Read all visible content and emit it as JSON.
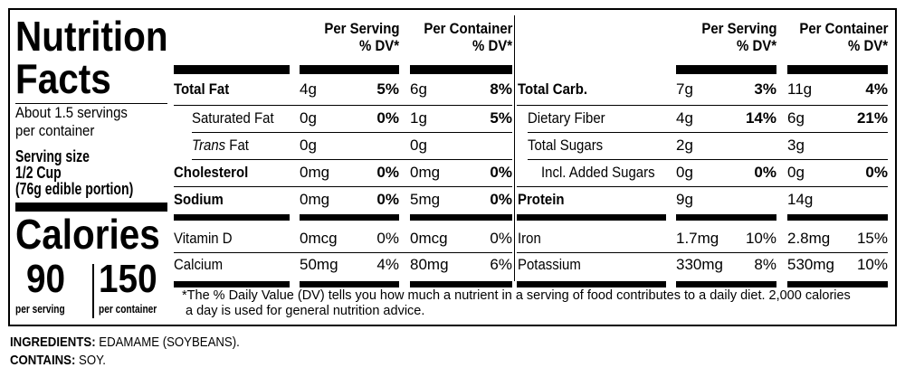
{
  "title_line1": "Nutrition",
  "title_line2": "Facts",
  "servings_line1": "About 1.5 servings",
  "servings_line2": "per container",
  "serving_size_label": "Serving size",
  "serving_size_value": "1/2 Cup",
  "serving_size_note": "(76g edible portion)",
  "calories_label": "Calories",
  "calories_per_serving": "90",
  "calories_per_serving_label": "per serving",
  "calories_per_container": "150",
  "calories_per_container_label": "per container",
  "headers": {
    "per_serving": "Per Serving",
    "per_container": "Per Container",
    "dv": "% DV*"
  },
  "left_rows": [
    {
      "name": "Total Fat",
      "bold": true,
      "serving_amount": "4g",
      "serving_dv": "5%",
      "container_amount": "6g",
      "container_dv": "8%"
    },
    {
      "name": "Saturated Fat",
      "bold": false,
      "serving_amount": "0g",
      "serving_dv": "0%",
      "container_amount": "1g",
      "container_dv": "5%"
    },
    {
      "name_italic": "Trans",
      "name": "Fat",
      "bold": false,
      "serving_amount": "0g",
      "serving_dv": "",
      "container_amount": "0g",
      "container_dv": ""
    },
    {
      "name": "Cholesterol",
      "bold": true,
      "serving_amount": "0mg",
      "serving_dv": "0%",
      "container_amount": "0mg",
      "container_dv": "0%"
    },
    {
      "name": "Sodium",
      "bold": true,
      "serving_amount": "0mg",
      "serving_dv": "0%",
      "container_amount": "5mg",
      "container_dv": "0%"
    },
    {
      "name": "Vitamin D",
      "bold": false,
      "serving_amount": "0mcg",
      "serving_dv": "0%",
      "container_amount": "0mcg",
      "container_dv": "0%"
    },
    {
      "name": "Calcium",
      "bold": false,
      "serving_amount": "50mg",
      "serving_dv": "4%",
      "container_amount": "80mg",
      "container_dv": "6%"
    }
  ],
  "right_rows": [
    {
      "name": "Total Carb.",
      "bold": true,
      "serving_amount": "7g",
      "serving_dv": "3%",
      "container_amount": "11g",
      "container_dv": "4%"
    },
    {
      "name": "Dietary Fiber",
      "bold": false,
      "serving_amount": "4g",
      "serving_dv": "14%",
      "container_amount": "6g",
      "container_dv": "21%"
    },
    {
      "name": "Total Sugars",
      "bold": false,
      "serving_amount": "2g",
      "serving_dv": "",
      "container_amount": "3g",
      "container_dv": ""
    },
    {
      "name": "Incl. Added Sugars",
      "bold": false,
      "serving_amount": "0g",
      "serving_dv": "0%",
      "container_amount": "0g",
      "container_dv": "0%"
    },
    {
      "name": "Protein",
      "bold": true,
      "serving_amount": "9g",
      "serving_dv": "",
      "container_amount": "14g",
      "container_dv": ""
    },
    {
      "name": "Iron",
      "bold": false,
      "serving_amount": "1.7mg",
      "serving_dv": "10%",
      "container_amount": "2.8mg",
      "container_dv": "15%"
    },
    {
      "name": "Potassium",
      "bold": false,
      "serving_amount": "330mg",
      "serving_dv": "8%",
      "container_amount": "530mg",
      "container_dv": "10%"
    }
  ],
  "footnote_line1": "*The % Daily Value (DV) tells you how much a nutrient in a serving of food contributes to a daily diet. 2,000 calories",
  "footnote_line2": "a day is used for general nutrition advice.",
  "ingredients_label": "INGREDIENTS:",
  "ingredients_value": "EDAMAME (SOYBEANS).",
  "contains_label": "CONTAINS:",
  "contains_value": "SOY."
}
